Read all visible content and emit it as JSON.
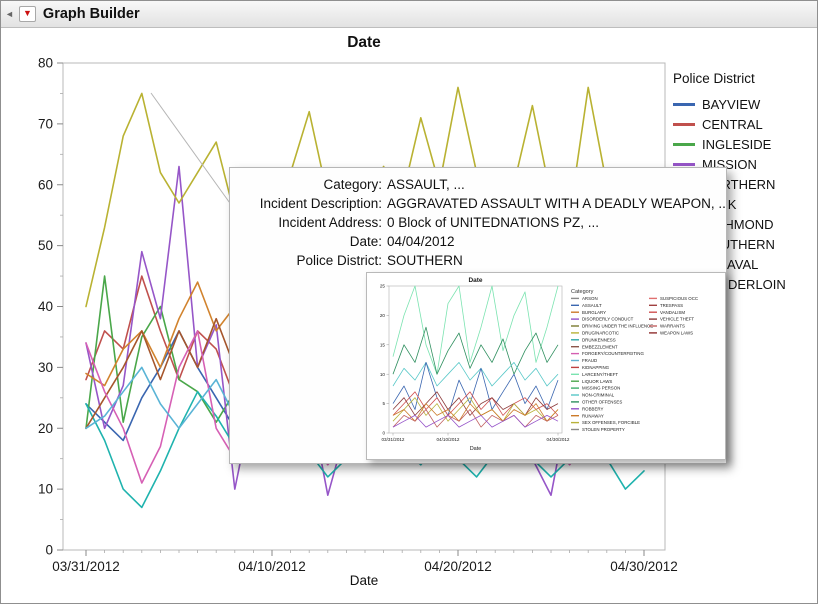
{
  "window": {
    "title": "Graph Builder"
  },
  "icons": {
    "red_triangle_menu": "▼",
    "collapse_arrow": "◄"
  },
  "tooltip": {
    "rows": [
      {
        "label": "Category:",
        "value": "ASSAULT, ..."
      },
      {
        "label": "Incident Description:",
        "value": "AGGRAVATED ASSAULT WITH A DEADLY WEAPON, ..."
      },
      {
        "label": "Incident Address:",
        "value": "0 Block of UNITEDNATIONS PZ, ..."
      },
      {
        "label": "Date:",
        "value": "04/04/2012"
      },
      {
        "label": "Police District:",
        "value": "SOUTHERN"
      }
    ]
  },
  "chart_data": [
    {
      "type": "line",
      "title": "Date",
      "xlabel": "Date",
      "x_tick_labels": [
        "03/31/2012",
        "04/10/2012",
        "04/20/2012",
        "04/30/2012"
      ],
      "x_tick_days": [
        0,
        10,
        20,
        30
      ],
      "x_days": 31,
      "ylim": [
        0,
        80
      ],
      "yticks": [
        0,
        10,
        20,
        30,
        40,
        50,
        60,
        70,
        80
      ],
      "grid": false,
      "legend_title": "Police District",
      "legend_position": "right",
      "series": [
        {
          "name": "BAYVIEW",
          "color": "#3a66b0",
          "values": [
            24,
            21,
            18,
            25,
            30,
            36,
            30,
            25,
            20,
            18,
            22,
            25,
            20,
            18,
            22,
            25,
            28,
            22,
            20,
            25,
            22,
            18,
            20,
            24,
            20,
            18,
            22,
            25,
            20,
            17,
            20
          ]
        },
        {
          "name": "CENTRAL",
          "color": "#c0504d",
          "values": [
            28,
            36,
            33,
            45,
            36,
            28,
            36,
            33,
            25,
            28,
            32,
            30,
            26,
            30,
            28,
            25,
            30,
            33,
            28,
            25,
            30,
            28,
            26,
            30,
            25,
            28,
            26,
            30,
            28,
            25,
            27
          ]
        },
        {
          "name": "INGLESIDE",
          "color": "#4aa74a",
          "values": [
            20,
            45,
            21,
            35,
            40,
            28,
            26,
            21,
            26,
            22,
            25,
            28,
            22,
            25,
            20,
            22,
            26,
            28,
            22,
            25,
            28,
            22,
            20,
            26,
            22,
            25,
            20,
            28,
            24,
            20,
            22
          ]
        },
        {
          "name": "MISSION",
          "color": "#9656c8",
          "values": [
            34,
            20,
            27,
            49,
            38,
            63,
            30,
            37,
            10,
            25,
            33,
            37,
            25,
            9,
            20,
            28,
            37,
            30,
            25,
            35,
            30,
            25,
            37,
            20,
            15,
            9,
            25,
            30,
            37,
            25,
            20
          ]
        },
        {
          "name": "NORTHERN",
          "color": "#d1832e",
          "values": [
            29,
            27,
            33,
            36,
            30,
            38,
            44,
            36,
            40,
            28,
            33,
            30,
            35,
            28,
            32,
            30,
            28,
            33,
            30,
            28,
            32,
            30,
            26,
            30,
            33,
            28,
            26,
            30,
            28,
            25,
            28
          ]
        },
        {
          "name": "PARK",
          "color": "#1fb3ae",
          "values": [
            24,
            18,
            10,
            7,
            13,
            20,
            26,
            22,
            17,
            15,
            18,
            22,
            16,
            12,
            15,
            18,
            22,
            17,
            14,
            18,
            15,
            12,
            16,
            20,
            15,
            12,
            15,
            18,
            15,
            10,
            13
          ]
        },
        {
          "name": "RICHMOND",
          "color": "#a6562c",
          "values": [
            20,
            25,
            30,
            36,
            28,
            36,
            30,
            38,
            30,
            24,
            28,
            25,
            30,
            26,
            22,
            25,
            28,
            24,
            20,
            25,
            22,
            20,
            24,
            26,
            22,
            18,
            22,
            25,
            22,
            18,
            20
          ]
        },
        {
          "name": "SOUTHERN",
          "color": "#b9b232",
          "values": [
            40,
            53,
            68,
            75,
            62,
            57,
            62,
            67,
            55,
            50,
            57,
            62,
            72,
            58,
            52,
            57,
            63,
            58,
            71,
            60,
            76,
            62,
            55,
            60,
            73,
            58,
            55,
            76,
            60,
            50,
            62
          ]
        },
        {
          "name": "TARAVAL",
          "color": "#d660b5",
          "values": [
            34,
            26,
            20,
            11,
            17,
            30,
            36,
            20,
            15,
            18,
            22,
            26,
            18,
            14,
            18,
            22,
            26,
            20,
            16,
            20,
            24,
            18,
            15,
            20,
            24,
            18,
            14,
            18,
            22,
            16,
            18
          ]
        },
        {
          "name": "TENDERLOIN",
          "color": "#5ab4d6",
          "values": [
            20,
            22,
            26,
            30,
            24,
            20,
            24,
            28,
            22,
            18,
            22,
            25,
            20,
            17,
            20,
            24,
            27,
            22,
            18,
            22,
            25,
            20,
            17,
            22,
            25,
            20,
            18,
            22,
            25,
            18,
            20
          ]
        }
      ]
    },
    {
      "type": "line",
      "title": "Date",
      "xlabel": "Date",
      "x_tick_labels": [
        "03/31/2012",
        "04/10/2012",
        "04/30/2012"
      ],
      "x_tick_points": [
        0,
        5,
        15
      ],
      "x_points": 16,
      "ylim": [
        0,
        25
      ],
      "yticks": [
        0,
        5,
        10,
        15,
        20,
        25
      ],
      "grid": false,
      "legend_title": "Category",
      "legend_position": "right",
      "legend_items": [
        {
          "label": "ARSON",
          "color": "#8a8a8a"
        },
        {
          "label": "ASSAULT",
          "color": "#3a66b0"
        },
        {
          "label": "BURGLARY",
          "color": "#cc7a29"
        },
        {
          "label": "DISORDERLY CONDUCT",
          "color": "#9350c8"
        },
        {
          "label": "DRIVING UNDER THE INFLUENCE",
          "color": "#7a7a30"
        },
        {
          "label": "DRUG/NARCOTIC",
          "color": "#b8b23a"
        },
        {
          "label": "DRUNKENNESS",
          "color": "#2ca8a8"
        },
        {
          "label": "EMBEZZLEMENT",
          "color": "#8c564b"
        },
        {
          "label": "FORGERY/COUNTERFEITING",
          "color": "#d45fb0"
        },
        {
          "label": "FRAUD",
          "color": "#62b1d0"
        },
        {
          "label": "KIDNAPPING",
          "color": "#bf4040"
        },
        {
          "label": "LARCENY/THEFT",
          "color": "#7be3b0"
        },
        {
          "label": "LIQUOR LAWS",
          "color": "#4ca64c"
        },
        {
          "label": "MISSING PERSON",
          "color": "#3fae6a"
        },
        {
          "label": "NON-CRIMINAL",
          "color": "#58c8c8"
        },
        {
          "label": "OTHER OFFENSES",
          "color": "#2f8f5f"
        },
        {
          "label": "ROBBERY",
          "color": "#9350c8"
        },
        {
          "label": "RUNAWAY",
          "color": "#cc7a29"
        },
        {
          "label": "SEX OFFENSES, FORCIBLE",
          "color": "#b8b23a"
        },
        {
          "label": "STOLEN PROPERTY",
          "color": "#8a8a8a"
        },
        {
          "label": "SUSPICIOUS OCC",
          "color": "#e07070"
        },
        {
          "label": "TRESPASS",
          "color": "#a04040"
        },
        {
          "label": "VANDALISM",
          "color": "#d05050"
        },
        {
          "label": "VEHICLE THEFT",
          "color": "#8b3a3a"
        },
        {
          "label": "WARRANTS",
          "color": "#c06060"
        },
        {
          "label": "WEAPON LAWS",
          "color": "#903030"
        }
      ],
      "series": [
        {
          "name": "LARCENY/THEFT",
          "color": "#7be3b0",
          "values": [
            13,
            20,
            25,
            15,
            10,
            22,
            25,
            12,
            18,
            25,
            14,
            20,
            24,
            12,
            18,
            25
          ]
        },
        {
          "name": "OTHER OFFENSES",
          "color": "#2f8f5f",
          "values": [
            10,
            15,
            12,
            18,
            10,
            14,
            17,
            11,
            15,
            12,
            16,
            10,
            14,
            17,
            12,
            15
          ]
        },
        {
          "name": "NON-CRIMINAL",
          "color": "#58c8c8",
          "values": [
            8,
            11,
            9,
            12,
            8,
            10,
            12,
            9,
            11,
            8,
            10,
            12,
            9,
            11,
            8,
            10
          ]
        },
        {
          "name": "ASSAULT",
          "color": "#3a66b0",
          "values": [
            5,
            8,
            4,
            12,
            6,
            3,
            9,
            5,
            11,
            4,
            7,
            10,
            5,
            8,
            4,
            9
          ]
        },
        {
          "name": "VANDALISM",
          "color": "#d05050",
          "values": [
            3,
            5,
            7,
            4,
            6,
            3,
            5,
            7,
            4,
            6,
            3,
            5,
            6,
            4,
            5,
            3
          ]
        },
        {
          "name": "VEHICLE THEFT",
          "color": "#8b3a3a",
          "values": [
            4,
            6,
            3,
            5,
            7,
            4,
            6,
            3,
            5,
            6,
            4,
            5,
            3,
            6,
            4,
            5
          ]
        },
        {
          "name": "DRUG/NARCOTIC",
          "color": "#b8b23a",
          "values": [
            2,
            4,
            6,
            3,
            5,
            2,
            4,
            6,
            3,
            4,
            2,
            5,
            3,
            4,
            2,
            4
          ]
        },
        {
          "name": "BURGLARY",
          "color": "#cc7a29",
          "values": [
            3,
            4,
            2,
            5,
            3,
            4,
            2,
            5,
            3,
            4,
            2,
            4,
            3,
            5,
            2,
            4
          ]
        },
        {
          "name": "WARRANTS",
          "color": "#c06060",
          "values": [
            1,
            3,
            2,
            4,
            1,
            3,
            2,
            4,
            1,
            3,
            2,
            3,
            1,
            3,
            2,
            3
          ]
        },
        {
          "name": "ROBBERY",
          "color": "#9350c8",
          "values": [
            1,
            2,
            3,
            1,
            2,
            3,
            1,
            2,
            3,
            1,
            2,
            3,
            1,
            2,
            3,
            2
          ]
        }
      ]
    }
  ]
}
